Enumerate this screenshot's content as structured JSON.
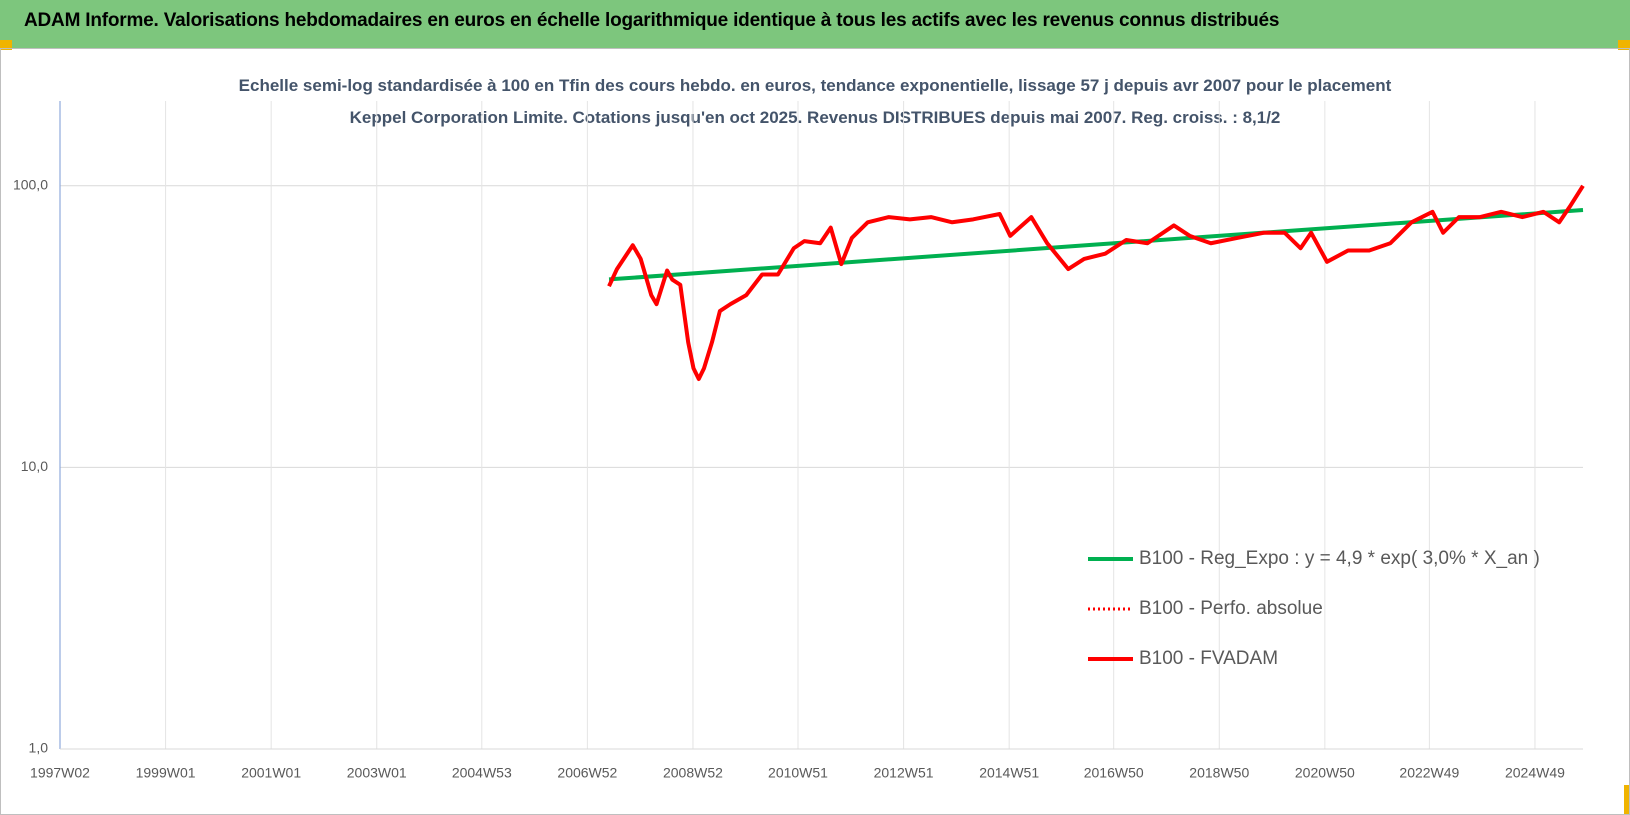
{
  "chart_data": {
    "type": "line",
    "title": "ADAM Informe. Valorisations hebdomadaires en euros en échelle logarithmique identique à tous les actifs avec les revenus connus distribués",
    "subtitle": "Echelle semi-log standardisée à 100 en Tfin des cours hebdo. en euros, tendance exponentielle, lissage 57 j depuis avr 2007 pour le placement Keppel Corporation Limite. Cotations jusqu'en oct 2025. Revenus DISTRIBUES depuis mai 2007. Reg. croiss. : 8,1/2",
    "log_scale": true,
    "grid": true,
    "legend": "lower-right",
    "ylim": [
      1,
      200
    ],
    "yticks": [
      {
        "value": 1,
        "label": "1,0"
      },
      {
        "value": 10,
        "label": "10,0"
      },
      {
        "value": 100,
        "label": "100,0"
      }
    ],
    "xlim": [
      1997.0,
      2025.85
    ],
    "xticks": [
      {
        "value": 1997.0,
        "label": "1997W02"
      },
      {
        "value": 1999.0,
        "label": "1999W01"
      },
      {
        "value": 2001.0,
        "label": "2001W01"
      },
      {
        "value": 2003.0,
        "label": "2003W01"
      },
      {
        "value": 2004.99,
        "label": "2004W53"
      },
      {
        "value": 2006.99,
        "label": "2006W52"
      },
      {
        "value": 2008.99,
        "label": "2008W52"
      },
      {
        "value": 2010.98,
        "label": "2010W51"
      },
      {
        "value": 2012.98,
        "label": "2012W51"
      },
      {
        "value": 2014.98,
        "label": "2014W51"
      },
      {
        "value": 2016.96,
        "label": "2016W50"
      },
      {
        "value": 2018.96,
        "label": "2018W50"
      },
      {
        "value": 2020.96,
        "label": "2020W50"
      },
      {
        "value": 2022.94,
        "label": "2022W49"
      },
      {
        "value": 2024.94,
        "label": "2024W49"
      }
    ],
    "series": [
      {
        "name": "B100 - Reg_Expo : y = 4,9 * exp( 3,0% *  X_an )",
        "color": "#00b050",
        "style": "solid",
        "x": [
          2007.4,
          2016.6,
          2025.85
        ],
        "values": [
          46.5,
          61.8,
          82
        ]
      },
      {
        "name": "B100 - Perfo. absolue",
        "color": "#ff0000",
        "style": "dotted",
        "x": [
          2007.4,
          2007.55,
          2007.85,
          2008.0,
          2008.2,
          2008.3,
          2008.5,
          2008.6,
          2008.75,
          2008.9,
          2009.0,
          2009.1,
          2009.2,
          2009.35,
          2009.5,
          2009.7,
          2010.0,
          2010.3,
          2010.6,
          2010.9,
          2011.1,
          2011.4,
          2011.6,
          2011.8,
          2012.0,
          2012.3,
          2012.7,
          2013.1,
          2013.5,
          2013.9,
          2014.3,
          2014.8,
          2015.0,
          2015.4,
          2015.7,
          2016.1,
          2016.4,
          2016.8,
          2017.2,
          2017.6,
          2018.1,
          2018.4,
          2018.8,
          2019.3,
          2019.8,
          2020.2,
          2020.5,
          2020.7,
          2021.0,
          2021.4,
          2021.8,
          2022.2,
          2022.6,
          2023.0,
          2023.2,
          2023.5,
          2023.9,
          2024.3,
          2024.7,
          2025.1,
          2025.4,
          2025.6,
          2025.85
        ],
        "values": [
          44,
          50.6,
          61.5,
          55,
          40.9,
          38,
          50,
          46.4,
          44.5,
          27.8,
          22.5,
          20.6,
          22.5,
          27.8,
          35.9,
          38,
          40.9,
          48.4,
          48.4,
          60,
          63.6,
          62.5,
          71,
          52.7,
          65.3,
          74.2,
          77.4,
          76,
          77.4,
          74.2,
          76,
          79.4,
          66.4,
          77.4,
          62.5,
          50.6,
          55,
          57.4,
          64.2,
          62.5,
          72.3,
          66.4,
          62.5,
          65.3,
          68.1,
          68.1,
          60,
          68.1,
          53.7,
          58.9,
          58.9,
          62.5,
          74.2,
          80.8,
          68.1,
          77.4,
          77.4,
          80.8,
          77.4,
          80.8,
          74.2,
          84.3,
          100
        ]
      },
      {
        "name": "B100 - FVADAM",
        "color": "#ff0000",
        "style": "solid",
        "x": [
          2007.4,
          2007.55,
          2007.85,
          2008.0,
          2008.2,
          2008.3,
          2008.5,
          2008.6,
          2008.75,
          2008.9,
          2009.0,
          2009.1,
          2009.2,
          2009.35,
          2009.5,
          2009.7,
          2010.0,
          2010.3,
          2010.6,
          2010.9,
          2011.1,
          2011.4,
          2011.6,
          2011.8,
          2012.0,
          2012.3,
          2012.7,
          2013.1,
          2013.5,
          2013.9,
          2014.3,
          2014.8,
          2015.0,
          2015.4,
          2015.7,
          2016.1,
          2016.4,
          2016.8,
          2017.2,
          2017.6,
          2018.1,
          2018.4,
          2018.8,
          2019.3,
          2019.8,
          2020.2,
          2020.5,
          2020.7,
          2021.0,
          2021.4,
          2021.8,
          2022.2,
          2022.6,
          2023.0,
          2023.2,
          2023.5,
          2023.9,
          2024.3,
          2024.7,
          2025.1,
          2025.4,
          2025.6,
          2025.85
        ],
        "values": [
          44,
          50.6,
          61.5,
          55,
          40.9,
          38,
          50,
          46.4,
          44.5,
          27.8,
          22.5,
          20.6,
          22.5,
          27.8,
          35.9,
          38,
          40.9,
          48.4,
          48.4,
          60,
          63.6,
          62.5,
          71,
          52.7,
          65.3,
          74.2,
          77.4,
          76,
          77.4,
          74.2,
          76,
          79.4,
          66.4,
          77.4,
          62.5,
          50.6,
          55,
          57.4,
          64.2,
          62.5,
          72.3,
          66.4,
          62.5,
          65.3,
          68.1,
          68.1,
          60,
          68.1,
          53.7,
          58.9,
          58.9,
          62.5,
          74.2,
          80.8,
          68.1,
          77.4,
          77.4,
          80.8,
          77.4,
          80.8,
          74.2,
          84.3,
          100
        ]
      }
    ]
  }
}
